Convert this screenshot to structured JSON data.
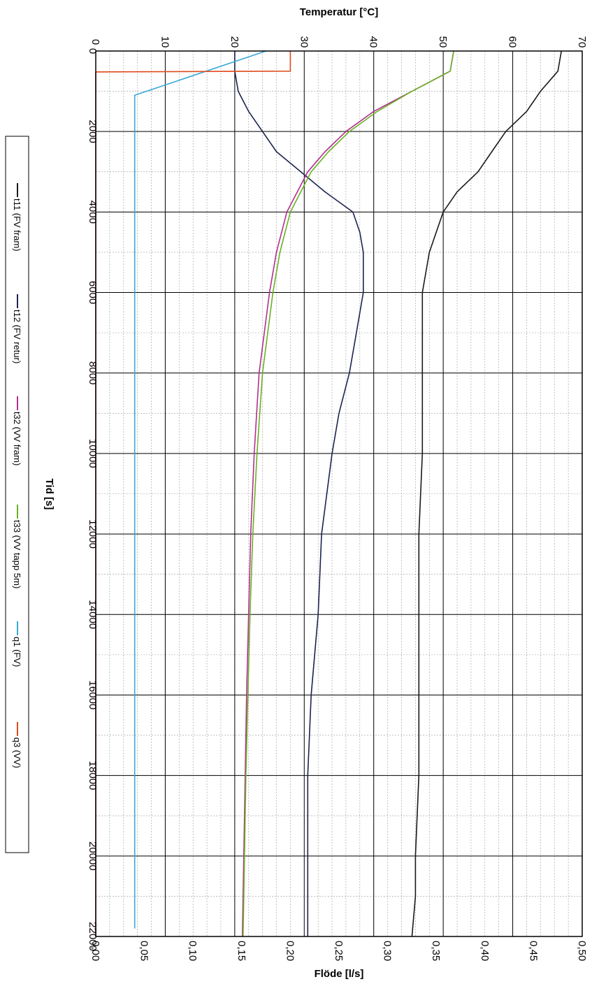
{
  "chart_data": {
    "type": "line",
    "orientation": "rotated-90",
    "x_axis": {
      "label": "Tid [s]",
      "range": [
        0,
        22000
      ],
      "ticks": [
        "0",
        "2000",
        "4000",
        "6000",
        "8000",
        "10000",
        "12000",
        "14000",
        "16000",
        "18000",
        "20000",
        "22000"
      ]
    },
    "temp_axis": {
      "label": "Temperatur [°C]",
      "range": [
        0,
        70
      ],
      "ticks": [
        "0",
        "10",
        "20",
        "30",
        "40",
        "50",
        "60",
        "70"
      ]
    },
    "flow_axis": {
      "label": "Flöde [l/s]",
      "range": [
        0,
        0.5
      ],
      "ticks": [
        "0,00",
        "0,05",
        "0,10",
        "0,15",
        "0,20",
        "0,25",
        "0,30",
        "0,35",
        "0,40",
        "0,45",
        "0,50"
      ]
    },
    "grid": true,
    "legend_position": "left",
    "series": [
      {
        "name": "t11 (FV fram)",
        "axis": "temp",
        "color": "#1a1a1a",
        "x": [
          0,
          500,
          1000,
          1500,
          2000,
          2500,
          3000,
          3500,
          4000,
          5000,
          6000,
          8000,
          10000,
          12000,
          14000,
          16000,
          18000,
          20000,
          21000,
          22000
        ],
        "y": [
          67,
          66.5,
          64,
          62,
          59,
          57,
          55,
          52,
          50,
          48,
          47,
          47,
          47,
          46.5,
          46.5,
          46.5,
          46.5,
          46,
          46,
          45.5
        ]
      },
      {
        "name": "t12 (FV retur)",
        "axis": "temp",
        "color": "#1c2350",
        "x": [
          0,
          500,
          1000,
          1500,
          2000,
          2500,
          3000,
          3500,
          4000,
          4500,
          5000,
          6000,
          7000,
          8000,
          9000,
          10000,
          12000,
          14000,
          16000,
          18000,
          20000,
          22000
        ],
        "y": [
          20,
          20,
          20.5,
          22,
          24,
          26,
          29.5,
          33,
          37,
          38,
          38.5,
          38.5,
          37.5,
          36.5,
          35,
          34,
          32.5,
          32,
          31,
          30.5,
          30.5,
          30.5
        ]
      },
      {
        "name": "t32 (VV fram)",
        "axis": "temp",
        "color": "#b0308c",
        "x": [
          0,
          500,
          1000,
          1500,
          2000,
          2500,
          3000,
          4000,
          5000,
          6000,
          8000,
          10000,
          12000,
          14000,
          16000,
          18000,
          20000,
          22000
        ],
        "y": [
          51.5,
          51,
          45.5,
          40,
          36,
          33,
          30.5,
          27.5,
          26,
          25,
          23.5,
          22.8,
          22.3,
          22,
          21.7,
          21.5,
          21.3,
          21.1
        ]
      },
      {
        "name": "t33 (VV tapp 5m)",
        "axis": "temp",
        "color": "#6ab024",
        "x": [
          0,
          500,
          1000,
          1500,
          2000,
          2500,
          3000,
          4000,
          5000,
          6000,
          8000,
          10000,
          12000,
          14000,
          16000,
          18000,
          20000,
          22000
        ],
        "y": [
          51.5,
          51,
          45.5,
          40.5,
          36.5,
          33.5,
          31,
          28,
          26.5,
          25.5,
          24,
          23.2,
          22.6,
          22.2,
          21.9,
          21.6,
          21.4,
          21.2
        ]
      },
      {
        "name": "q1 (FV)",
        "axis": "flow",
        "color": "#38a8d8",
        "x": [
          0,
          1100,
          2000,
          3000,
          4000,
          5000,
          6000,
          7000,
          8000,
          9000,
          10000,
          11000,
          12000,
          13000,
          14000,
          15000,
          16000,
          17000,
          18000,
          19000,
          20000,
          21000,
          21800
        ],
        "y": [
          0.175,
          0.04,
          0.04,
          0.04,
          0.04,
          0.04,
          0.04,
          0.04,
          0.04,
          0.04,
          0.04,
          0.04,
          0.04,
          0.04,
          0.04,
          0.04,
          0.04,
          0.04,
          0.04,
          0.04,
          0.04,
          0.04,
          0.04
        ]
      },
      {
        "name": "q3 (VV)",
        "axis": "flow",
        "color": "#e04a1c",
        "x": [
          0,
          500,
          520,
          22000
        ],
        "y": [
          0.2,
          0.2,
          0.0,
          0.0
        ]
      }
    ]
  }
}
